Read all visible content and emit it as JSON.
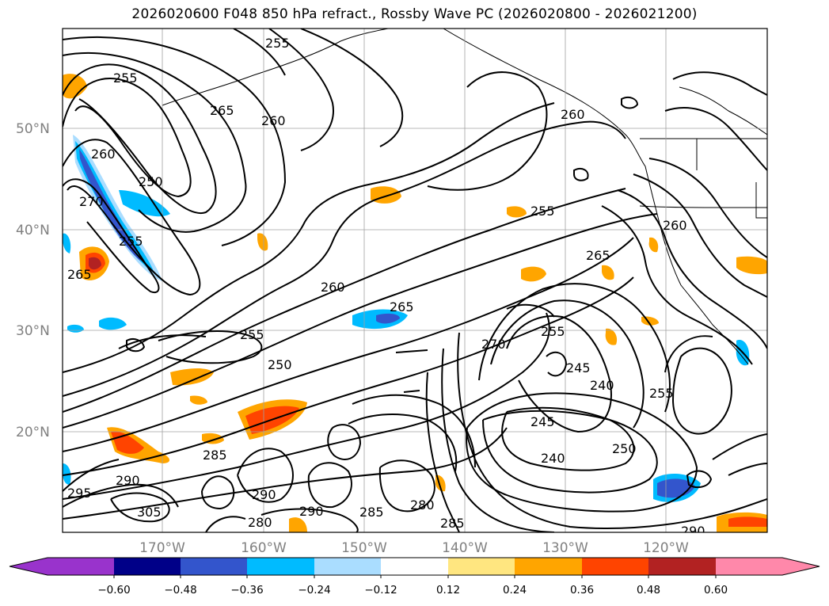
{
  "title": "2026020600 F048 850 hPa refract., Rossby Wave PC (2026020800 - 2026021200)",
  "map": {
    "latitude_labels": [
      "50°N",
      "40°N",
      "30°N",
      "20°N"
    ],
    "longitude_labels": [
      "170°W",
      "160°W",
      "150°W",
      "140°W",
      "130°W",
      "120°W"
    ],
    "gridlines": true
  },
  "contour_labels": [
    "255",
    "265",
    "260",
    "255",
    "250",
    "255",
    "260",
    "265",
    "260",
    "265",
    "270",
    "255",
    "245",
    "240",
    "245",
    "240",
    "250",
    "255",
    "260",
    "255",
    "250",
    "285",
    "290",
    "295",
    "290",
    "285",
    "280",
    "280",
    "285",
    "290",
    "305",
    "265",
    "270",
    "260",
    "255",
    "290"
  ],
  "colorbar": {
    "ticks": [
      "−0.60",
      "−0.48",
      "−0.36",
      "−0.24",
      "−0.12",
      "0.12",
      "0.24",
      "0.36",
      "0.48",
      "0.60"
    ],
    "colors": [
      "#9933cc",
      "#000088",
      "#3355cc",
      "#00bbff",
      "#aaddff",
      "#ffffff",
      "#ffe680",
      "#ffa500",
      "#ff4400",
      "#b22222",
      "#ff88aa"
    ]
  }
}
